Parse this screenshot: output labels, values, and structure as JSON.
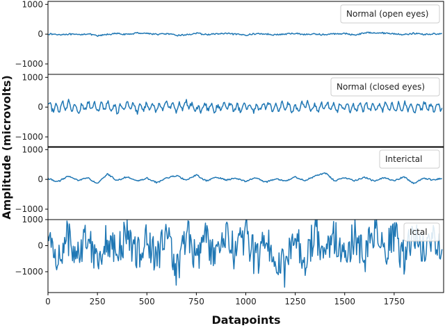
{
  "chart_data": {
    "type": "line",
    "xlabel": "Datapoints",
    "ylabel": "Amplitude (microvolts)",
    "xlim": [
      0,
      2000
    ],
    "xticks": [
      0,
      250,
      500,
      750,
      1000,
      1250,
      1500,
      1750
    ],
    "grid": false,
    "legend_position": "top-right",
    "line_color": "#1f77b4",
    "panels": [
      {
        "legend": "Normal (open eyes)",
        "ylim": [
          -1350,
          1100
        ],
        "yticks": [
          1000,
          0,
          -1000
        ],
        "x": [
          0,
          50,
          100,
          150,
          200,
          250,
          300,
          350,
          400,
          450,
          500,
          550,
          600,
          650,
          700,
          750,
          800,
          850,
          900,
          950,
          1000,
          1050,
          1100,
          1150,
          1200,
          1250,
          1300,
          1350,
          1400,
          1450,
          1500,
          1550,
          1600,
          1650,
          1700,
          1750,
          1800,
          1850,
          1900,
          1950,
          1995
        ],
        "y": [
          10,
          -20,
          0,
          -30,
          20,
          -90,
          -10,
          30,
          -20,
          60,
          40,
          -10,
          20,
          -60,
          -30,
          40,
          -20,
          10,
          30,
          -10,
          -40,
          20,
          10,
          -30,
          0,
          40,
          -20,
          10,
          -30,
          20,
          30,
          -40,
          60,
          80,
          50,
          20,
          -20,
          40,
          -10,
          10,
          30
        ]
      },
      {
        "legend": "Normal (closed eyes)",
        "ylim": [
          -1350,
          1100
        ],
        "yticks": [
          1000,
          0,
          -1000
        ],
        "amplitude": 200,
        "x": [
          0,
          50,
          100,
          150,
          200,
          250,
          300,
          350,
          400,
          450,
          500,
          550,
          600,
          650,
          700,
          750,
          800,
          850,
          900,
          950,
          1000,
          1050,
          1100,
          1150,
          1200,
          1250,
          1300,
          1350,
          1400,
          1450,
          1500,
          1550,
          1600,
          1650,
          1700,
          1750,
          1800,
          1850,
          1900,
          1950,
          1995
        ],
        "y": [
          40,
          -60,
          120,
          -80,
          90,
          -40,
          60,
          -120,
          150,
          -90,
          40,
          -70,
          130,
          -60,
          180,
          -150,
          60,
          -110,
          140,
          -70,
          60,
          -80,
          120,
          -60,
          90,
          -140,
          150,
          -80,
          60,
          -40,
          20,
          -40,
          30,
          -50,
          40,
          -30,
          50,
          -60,
          40,
          -30,
          60
        ]
      },
      {
        "legend": "Interictal",
        "ylim": [
          -1350,
          1100
        ],
        "yticks": [
          1000,
          0,
          -1000
        ],
        "x": [
          0,
          50,
          100,
          150,
          200,
          250,
          300,
          350,
          400,
          450,
          500,
          550,
          600,
          650,
          700,
          750,
          800,
          850,
          900,
          950,
          1000,
          1050,
          1100,
          1150,
          1200,
          1250,
          1300,
          1350,
          1400,
          1450,
          1500,
          1550,
          1600,
          1650,
          1700,
          1750,
          1800,
          1850,
          1900,
          1950,
          1995
        ],
        "y": [
          50,
          -120,
          150,
          -40,
          80,
          -220,
          260,
          -60,
          130,
          -90,
          60,
          -160,
          70,
          180,
          -50,
          220,
          -80,
          110,
          -30,
          60,
          -100,
          90,
          -140,
          40,
          -70,
          110,
          -50,
          150,
          320,
          -80,
          90,
          -60,
          110,
          -90,
          80,
          -50,
          120,
          -200,
          60,
          -40,
          80
        ]
      },
      {
        "legend": "Ictal",
        "ylim": [
          -1800,
          1000
        ],
        "yticks": [
          1000,
          0,
          -1000
        ],
        "amplitude": 900,
        "x": [
          0,
          50,
          100,
          150,
          200,
          250,
          300,
          350,
          400,
          450,
          500,
          550,
          600,
          650,
          700,
          750,
          800,
          850,
          900,
          950,
          1000,
          1050,
          1100,
          1150,
          1200,
          1250,
          1300,
          1350,
          1400,
          1450,
          1500,
          1550,
          1600,
          1650,
          1700,
          1750,
          1800,
          1850,
          1900,
          1950,
          1995
        ],
        "y": [
          300,
          -800,
          600,
          -500,
          800,
          -900,
          500,
          -700,
          900,
          -600,
          400,
          -800,
          700,
          -1700,
          1000,
          -900,
          600,
          -1000,
          800,
          -700,
          900,
          -1100,
          600,
          -800,
          -1750,
          700,
          -900,
          1000,
          -600,
          800,
          -900,
          700,
          -1000,
          1100,
          -700,
          600,
          -800,
          900,
          -500,
          700,
          200
        ]
      }
    ]
  }
}
